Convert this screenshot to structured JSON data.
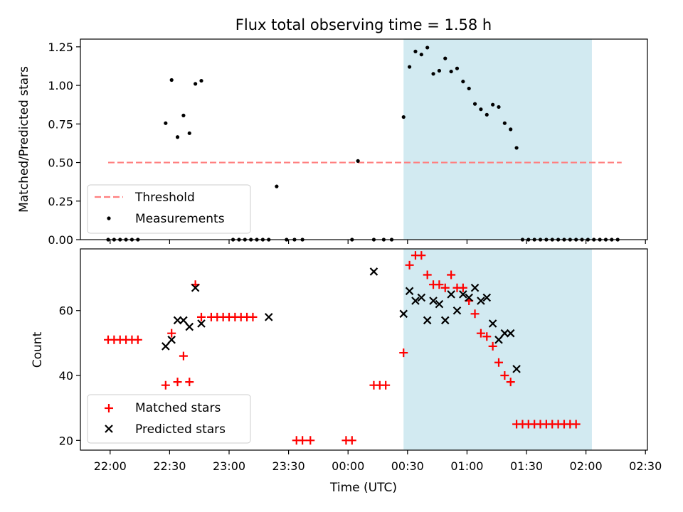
{
  "chart_data": {
    "type": "scatter",
    "title": "Flux total observing time = 1.58 h",
    "xlabel": "Time (UTC)",
    "x_ticks": [
      "22:00",
      "22:30",
      "23:00",
      "23:30",
      "00:00",
      "00:30",
      "01:00",
      "01:30",
      "02:00",
      "02:30"
    ],
    "x_range": [
      "21:45",
      "02:31"
    ],
    "shaded_span": [
      "00:28",
      "02:03"
    ],
    "colors": {
      "shade": "#add8e6",
      "threshold": "#ff7f7f",
      "measurements": "#000000",
      "matched": "#ff0000",
      "predicted": "#000000"
    },
    "panels": [
      {
        "ylabel": "Matched/Predicted stars",
        "ylim": [
          0,
          1.3
        ],
        "y_ticks": [
          "0.00",
          "0.25",
          "0.50",
          "0.75",
          "1.00",
          "1.25"
        ],
        "y_tick_values": [
          0,
          0.25,
          0.5,
          0.75,
          1.0,
          1.25
        ],
        "legend": {
          "placement": "lower-left",
          "entries": [
            "Threshold",
            "Measurements"
          ]
        },
        "series": [
          {
            "name": "Threshold",
            "style": "dashed-line",
            "x": [
              "21:59",
              "02:18"
            ],
            "y": [
              0.5,
              0.5
            ]
          },
          {
            "name": "Measurements",
            "style": "dot",
            "x": [
              "21:59",
              "22:02",
              "22:05",
              "22:08",
              "22:11",
              "22:14",
              "22:28",
              "22:31",
              "22:34",
              "22:37",
              "22:40",
              "22:43",
              "22:46",
              "23:02",
              "23:05",
              "23:08",
              "23:11",
              "23:14",
              "23:17",
              "23:20",
              "23:24",
              "23:29",
              "23:33",
              "23:37",
              "00:02",
              "00:05",
              "00:13",
              "00:18",
              "00:22",
              "00:28",
              "00:31",
              "00:34",
              "00:37",
              "00:40",
              "00:43",
              "00:46",
              "00:49",
              "00:52",
              "00:55",
              "00:58",
              "01:01",
              "01:04",
              "01:07",
              "01:10",
              "01:13",
              "01:16",
              "01:19",
              "01:22",
              "01:25",
              "01:28",
              "01:31",
              "01:34",
              "01:37",
              "01:40",
              "01:43",
              "01:46",
              "01:49",
              "01:52",
              "01:55",
              "01:58",
              "02:01",
              "02:04",
              "02:07",
              "02:10",
              "02:13",
              "02:16"
            ],
            "y": [
              0,
              0,
              0,
              0,
              0,
              0,
              0.755,
              1.035,
              0.665,
              0.805,
              0.69,
              1.01,
              1.03,
              0,
              0,
              0,
              0,
              0,
              0,
              0,
              0.345,
              0,
              0,
              0,
              0,
              0.51,
              0,
              0,
              0,
              0.795,
              1.12,
              1.22,
              1.2,
              1.245,
              1.075,
              1.095,
              1.175,
              1.09,
              1.11,
              1.025,
              0.98,
              0.88,
              0.845,
              0.81,
              0.875,
              0.86,
              0.755,
              0.715,
              0.595,
              0,
              0,
              0,
              0,
              0,
              0,
              0,
              0,
              0,
              0,
              0,
              0,
              0,
              0,
              0,
              0,
              0
            ],
            "note_visible_points_x": [
              "21:59",
              "22:02",
              "22:05",
              "22:08",
              "22:11",
              "22:14",
              "22:28",
              "22:31",
              "22:34",
              "22:37",
              "22:40",
              "22:43",
              "22:46",
              "23:02",
              "23:05",
              "23:08",
              "23:11",
              "23:14",
              "23:17",
              "23:20",
              "23:24",
              "23:29",
              "23:33",
              "23:37",
              "00:02",
              "00:05",
              "00:13",
              "00:18",
              "00:22",
              "00:28",
              "00:31",
              "00:34",
              "00:37",
              "00:40",
              "00:43",
              "00:46",
              "00:49",
              "00:52",
              "00:55",
              "00:58",
              "01:01",
              "01:04",
              "01:07",
              "01:10",
              "01:13",
              "01:16",
              "01:19",
              "01:22",
              "01:25",
              "01:28",
              "01:31",
              "01:34",
              "01:37",
              "01:40",
              "01:43",
              "01:46",
              "01:49",
              "01:52",
              "01:55",
              "01:58",
              "02:01",
              "02:04",
              "02:07",
              "02:10",
              "02:13",
              "02:16"
            ]
          }
        ]
      },
      {
        "ylabel": "Count",
        "ylim": [
          17,
          79
        ],
        "y_ticks": [
          "20",
          "40",
          "60"
        ],
        "y_tick_values": [
          20,
          40,
          60
        ],
        "legend": {
          "placement": "lower-left",
          "entries": [
            "Matched stars",
            "Predicted stars"
          ]
        },
        "series": [
          {
            "name": "Matched stars",
            "style": "plus",
            "x": [
              "21:59",
              "22:02",
              "22:05",
              "22:08",
              "22:11",
              "22:14",
              "22:28",
              "22:31",
              "22:34",
              "22:37",
              "22:40",
              "22:43",
              "22:46",
              "22:51",
              "22:54",
              "22:57",
              "23:00",
              "23:03",
              "23:06",
              "23:09",
              "23:12",
              "23:34",
              "23:37",
              "23:41",
              "23:59",
              "00:02",
              "00:13",
              "00:16",
              "00:19",
              "00:28",
              "00:31",
              "00:34",
              "00:37",
              "00:40",
              "00:43",
              "00:46",
              "00:49",
              "00:52",
              "00:55",
              "00:58",
              "01:01",
              "01:04",
              "01:07",
              "01:10",
              "01:13",
              "01:16",
              "01:19",
              "01:22",
              "01:25",
              "01:28",
              "01:31",
              "01:34",
              "01:37",
              "01:40",
              "01:43",
              "01:46",
              "01:49",
              "01:52",
              "01:55"
            ],
            "y": [
              51,
              51,
              51,
              51,
              51,
              51,
              37,
              53,
              38,
              46,
              38,
              68,
              58,
              58,
              58,
              58,
              58,
              58,
              58,
              58,
              58,
              20,
              20,
              20,
              20,
              20,
              37,
              37,
              37,
              47,
              74,
              77,
              77,
              71,
              68,
              68,
              67,
              71,
              67,
              67,
              63,
              59,
              53,
              52,
              49,
              44,
              40,
              38,
              25,
              25,
              25,
              25,
              25,
              25,
              25,
              25,
              25,
              25,
              25
            ]
          },
          {
            "name": "Predicted stars",
            "style": "x",
            "x": [
              "22:28",
              "22:31",
              "22:34",
              "22:37",
              "22:40",
              "22:43",
              "22:46",
              "23:20",
              "00:13",
              "00:28",
              "00:31",
              "00:34",
              "00:37",
              "00:40",
              "00:43",
              "00:46",
              "00:49",
              "00:52",
              "00:55",
              "00:58",
              "01:01",
              "01:04",
              "01:07",
              "01:10",
              "01:13",
              "01:16",
              "01:19",
              "01:22",
              "01:25"
            ],
            "y": [
              49,
              51,
              57,
              57,
              55,
              67,
              56,
              58,
              72,
              59,
              66,
              63,
              64,
              57,
              63,
              62,
              57,
              65,
              60,
              65,
              64,
              67,
              63,
              64,
              56,
              51,
              53,
              53,
              42
            ]
          }
        ]
      }
    ]
  }
}
